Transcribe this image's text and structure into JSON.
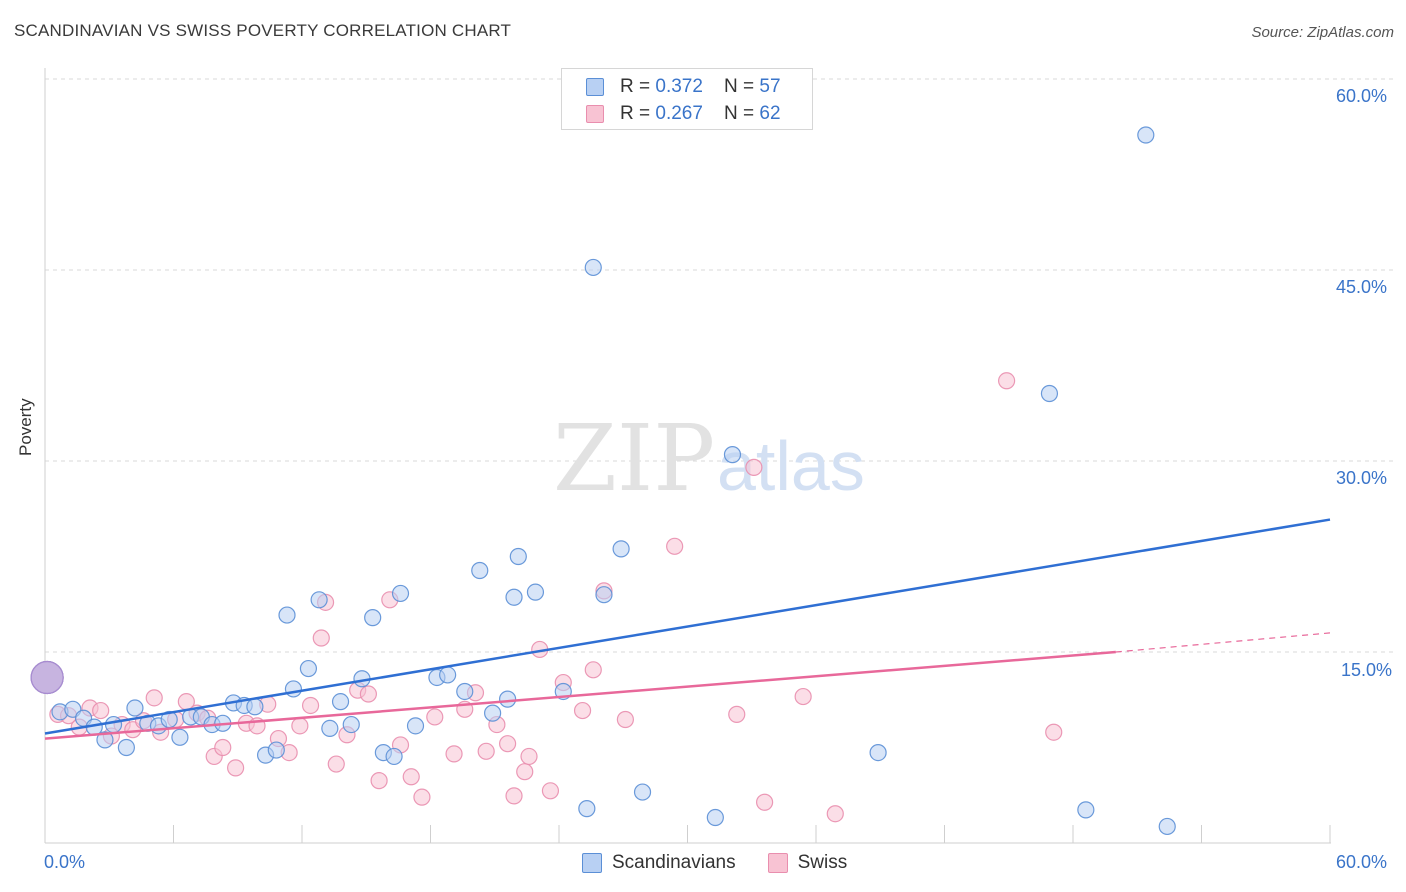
{
  "header": {
    "title": "SCANDINAVIAN VS SWISS POVERTY CORRELATION CHART",
    "source": "Source: ZipAtlas.com"
  },
  "watermark": {
    "zip": "ZIP",
    "atlas": "atlas"
  },
  "legend_top": {
    "rows": [
      {
        "r_label": "R = ",
        "r_value": "0.372",
        "n_label": "N = ",
        "n_value": "57"
      },
      {
        "r_label": "R = ",
        "r_value": "0.267",
        "n_label": "N = ",
        "n_value": "62"
      }
    ]
  },
  "legend_bottom": {
    "items": [
      "Scandinavians",
      "Swiss"
    ]
  },
  "axes": {
    "ylabel": "Poverty",
    "x_min_label": "0.0%",
    "x_max_label": "60.0%",
    "y_ticks": [
      "15.0%",
      "30.0%",
      "45.0%",
      "60.0%"
    ]
  },
  "colors": {
    "blue": "#3a74c9",
    "blue_fill": "#b8d0f3",
    "blue_line": "#2f6fd3",
    "pink": "#e56b97",
    "pink_fill": "#f8c3d3",
    "pink_line": "#e8689a",
    "grid": "#d9d9d9"
  },
  "chart_data": {
    "type": "scatter",
    "title": "SCANDINAVIAN VS SWISS POVERTY CORRELATION CHART",
    "xlabel": "",
    "ylabel": "Poverty",
    "xlim": [
      0,
      60
    ],
    "ylim": [
      0,
      60
    ],
    "y_ticks": [
      15,
      30,
      45,
      60
    ],
    "grid": true,
    "legend_position": "top-center",
    "series": [
      {
        "name": "Scandinavians",
        "color": "#3a74c9",
        "R": 0.372,
        "N": 57,
        "trend": {
          "x": [
            0,
            60
          ],
          "y": [
            8.6,
            25.4
          ]
        },
        "points": [
          [
            0.1,
            13.0
          ],
          [
            0.7,
            10.3
          ],
          [
            1.3,
            10.5
          ],
          [
            1.8,
            9.8
          ],
          [
            2.3,
            9.1
          ],
          [
            2.8,
            8.1
          ],
          [
            3.2,
            9.3
          ],
          [
            3.8,
            7.5
          ],
          [
            4.2,
            10.6
          ],
          [
            4.8,
            9.4
          ],
          [
            5.3,
            9.2
          ],
          [
            5.8,
            9.7
          ],
          [
            6.3,
            8.3
          ],
          [
            6.8,
            9.9
          ],
          [
            7.3,
            9.9
          ],
          [
            7.8,
            9.3
          ],
          [
            8.3,
            9.4
          ],
          [
            8.8,
            11.0
          ],
          [
            9.3,
            10.8
          ],
          [
            9.8,
            10.7
          ],
          [
            10.3,
            6.9
          ],
          [
            10.8,
            7.3
          ],
          [
            11.3,
            17.9
          ],
          [
            11.6,
            12.1
          ],
          [
            12.3,
            13.7
          ],
          [
            12.8,
            19.1
          ],
          [
            13.3,
            9.0
          ],
          [
            13.8,
            11.1
          ],
          [
            14.3,
            9.3
          ],
          [
            14.8,
            12.9
          ],
          [
            15.3,
            17.7
          ],
          [
            15.8,
            7.1
          ],
          [
            16.3,
            6.8
          ],
          [
            16.6,
            19.6
          ],
          [
            17.3,
            9.2
          ],
          [
            18.3,
            13.0
          ],
          [
            18.8,
            13.2
          ],
          [
            19.6,
            11.9
          ],
          [
            20.3,
            21.4
          ],
          [
            20.9,
            10.2
          ],
          [
            21.6,
            11.3
          ],
          [
            21.9,
            19.3
          ],
          [
            22.1,
            22.5
          ],
          [
            22.9,
            19.7
          ],
          [
            24.2,
            11.9
          ],
          [
            25.3,
            2.7
          ],
          [
            25.6,
            45.2
          ],
          [
            26.1,
            19.5
          ],
          [
            26.9,
            23.1
          ],
          [
            27.9,
            4.0
          ],
          [
            31.3,
            2.0
          ],
          [
            32.1,
            30.5
          ],
          [
            38.9,
            7.1
          ],
          [
            46.9,
            35.3
          ],
          [
            48.6,
            2.6
          ],
          [
            51.4,
            55.6
          ],
          [
            52.4,
            1.3
          ]
        ]
      },
      {
        "name": "Swiss",
        "color": "#e56b97",
        "R": 0.267,
        "N": 62,
        "trend": {
          "x": [
            0,
            50
          ],
          "y": [
            8.2,
            15.0
          ]
        },
        "trend_dashed": {
          "x": [
            50,
            60
          ],
          "y": [
            15.0,
            16.5
          ]
        },
        "points": [
          [
            0.6,
            10.1
          ],
          [
            1.1,
            10.0
          ],
          [
            1.6,
            9.1
          ],
          [
            2.1,
            10.6
          ],
          [
            2.6,
            10.4
          ],
          [
            3.1,
            8.4
          ],
          [
            3.6,
            9.3
          ],
          [
            4.1,
            8.9
          ],
          [
            4.6,
            9.6
          ],
          [
            5.1,
            11.4
          ],
          [
            5.4,
            8.7
          ],
          [
            6.1,
            9.7
          ],
          [
            6.6,
            11.1
          ],
          [
            7.1,
            10.2
          ],
          [
            7.6,
            9.8
          ],
          [
            7.9,
            6.8
          ],
          [
            8.3,
            7.5
          ],
          [
            8.9,
            5.9
          ],
          [
            9.4,
            9.4
          ],
          [
            9.9,
            9.2
          ],
          [
            10.4,
            10.9
          ],
          [
            10.9,
            8.2
          ],
          [
            11.4,
            7.1
          ],
          [
            11.9,
            9.2
          ],
          [
            12.4,
            10.8
          ],
          [
            12.9,
            16.1
          ],
          [
            13.1,
            18.9
          ],
          [
            13.6,
            6.2
          ],
          [
            14.1,
            8.5
          ],
          [
            14.6,
            12.0
          ],
          [
            15.1,
            11.7
          ],
          [
            15.6,
            4.9
          ],
          [
            16.1,
            19.1
          ],
          [
            16.6,
            7.7
          ],
          [
            17.1,
            5.2
          ],
          [
            17.6,
            3.6
          ],
          [
            18.2,
            9.9
          ],
          [
            19.1,
            7.0
          ],
          [
            19.6,
            10.5
          ],
          [
            20.1,
            11.8
          ],
          [
            20.6,
            7.2
          ],
          [
            21.1,
            9.3
          ],
          [
            21.6,
            7.8
          ],
          [
            21.9,
            3.7
          ],
          [
            22.4,
            5.6
          ],
          [
            22.6,
            6.8
          ],
          [
            23.1,
            15.2
          ],
          [
            23.6,
            4.1
          ],
          [
            24.2,
            12.6
          ],
          [
            25.1,
            10.4
          ],
          [
            25.6,
            13.6
          ],
          [
            26.1,
            19.8
          ],
          [
            27.1,
            9.7
          ],
          [
            29.4,
            23.3
          ],
          [
            32.3,
            10.1
          ],
          [
            33.1,
            29.5
          ],
          [
            33.6,
            3.2
          ],
          [
            35.4,
            11.5
          ],
          [
            36.9,
            2.3
          ],
          [
            44.9,
            36.3
          ],
          [
            47.1,
            8.7
          ],
          [
            0.1,
            13.0
          ]
        ]
      }
    ]
  }
}
